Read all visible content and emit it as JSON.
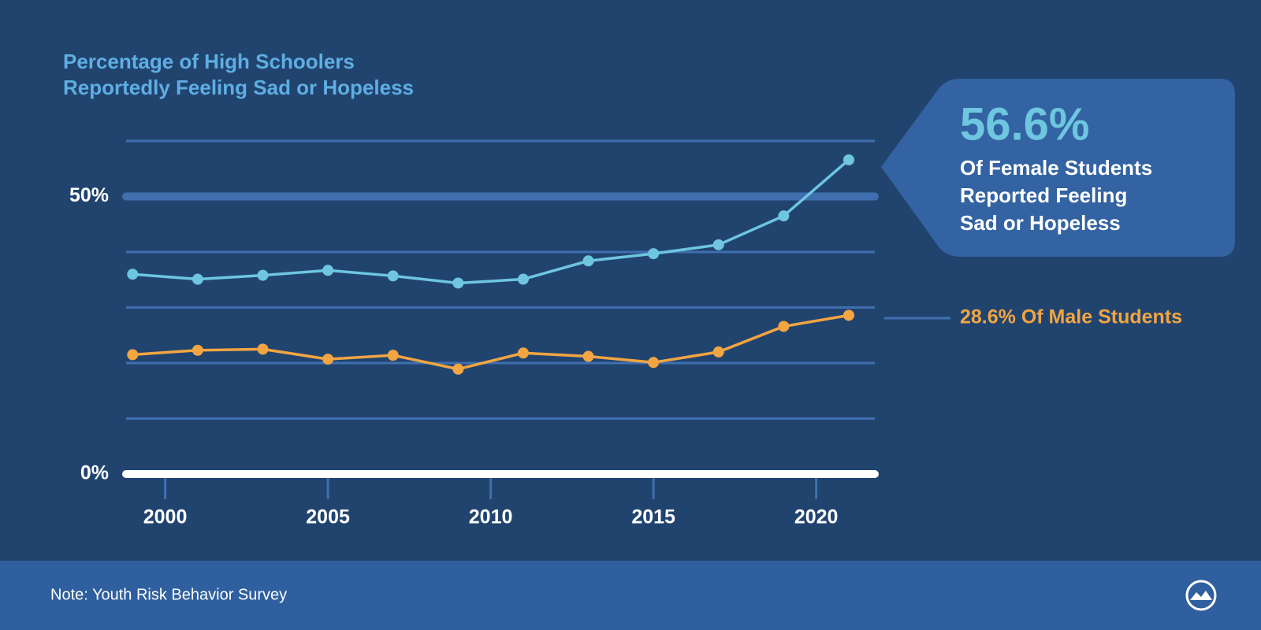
{
  "chart_data": {
    "type": "line",
    "title": [
      "Percentage of High Schoolers",
      "Reportedly Feeling Sad or Hopeless"
    ],
    "x": [
      1999,
      2001,
      2003,
      2005,
      2007,
      2009,
      2011,
      2013,
      2015,
      2017,
      2019,
      2021
    ],
    "series": [
      {
        "name": "Female Students",
        "color": "#6ec6df",
        "values": [
          36.0,
          35.1,
          35.8,
          36.7,
          35.7,
          34.4,
          35.1,
          38.4,
          39.7,
          41.3,
          46.5,
          56.6
        ]
      },
      {
        "name": "Male Students",
        "color": "#f2a541",
        "values": [
          21.5,
          22.3,
          22.5,
          20.7,
          21.4,
          18.9,
          21.8,
          21.2,
          20.1,
          22.0,
          26.6,
          28.6
        ]
      }
    ],
    "callout": {
      "headline": "56.6%",
      "lines": [
        "Of Female Students",
        "Reported Feeling",
        "Sad or Hopeless"
      ]
    },
    "male_label": "28.6% Of Male Students",
    "xlim": [
      1998.8,
      2021.8
    ],
    "xticks": [
      2000,
      2005,
      2010,
      2015,
      2020
    ],
    "ylim": [
      0,
      60
    ],
    "yticks": [
      {
        "value": 0,
        "label": "0%"
      },
      {
        "value": 50,
        "label": "50%"
      }
    ],
    "minor_yticks": [
      10,
      20,
      30,
      40,
      60
    ],
    "grid": true,
    "note": "Note: Youth Risk Behavior Survey"
  }
}
